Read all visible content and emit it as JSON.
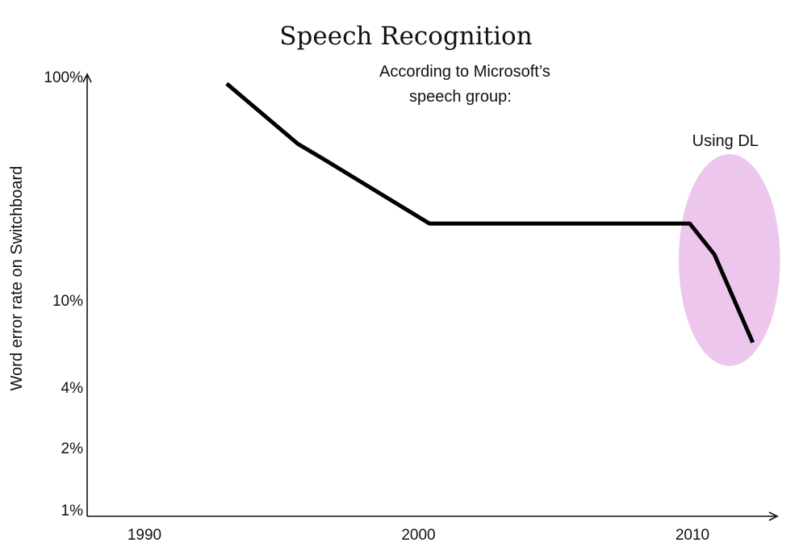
{
  "chart_data": {
    "type": "line",
    "title": "Speech Recognition",
    "subtitle_lines": [
      "According to Microsoft’s",
      "speech group:"
    ],
    "ylabel": "Word error rate on Switchboard",
    "xlabel": "",
    "x_ticks": [
      {
        "value": 1990,
        "label": "1990"
      },
      {
        "value": 2000,
        "label": "2000"
      },
      {
        "value": 2010,
        "label": "2010"
      }
    ],
    "y_ticks": [
      {
        "value": 100,
        "label": "100%"
      },
      {
        "value": 10,
        "label": "10%"
      },
      {
        "value": 4,
        "label": "4%"
      },
      {
        "value": 2,
        "label": "2%"
      },
      {
        "value": 1,
        "label": "1%"
      }
    ],
    "y_scale": "log",
    "xlim": [
      1989,
      2013
    ],
    "ylim": [
      1,
      100
    ],
    "grid": false,
    "legend": "none",
    "series": [
      {
        "x": [
          1993,
          1995.6,
          1996.5,
          2000.4,
          2009.9,
          2010.8,
          2012.2
        ],
        "y": [
          93,
          50,
          43,
          22,
          22,
          16,
          6.4
        ],
        "color": "#000000"
      }
    ],
    "annotations": [
      {
        "text": "Using DL",
        "highlight_x_range": [
          2009.5,
          2013.2
        ],
        "highlight_y_range": [
          5,
          45
        ],
        "highlight_color": "#ecc6ec"
      }
    ]
  }
}
